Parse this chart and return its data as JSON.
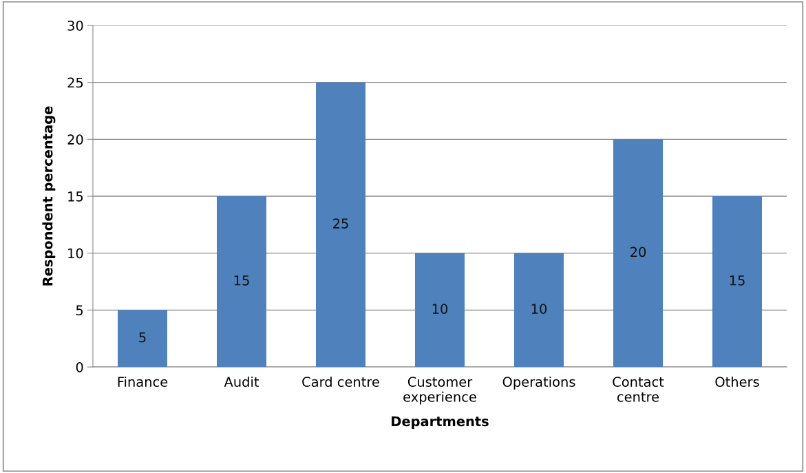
{
  "chart_data": {
    "type": "bar",
    "xlabel": "Departments",
    "ylabel": "Respondent percentage",
    "categories": [
      "Finance",
      "Audit",
      "Card centre",
      "Customer\nexperience",
      "Operations",
      "Contact\ncentre",
      "Others"
    ],
    "values": [
      5,
      15,
      25,
      10,
      10,
      20,
      15
    ],
    "color": "#4f81bd",
    "ylim": [
      0,
      30
    ],
    "yticks": [
      0,
      5,
      10,
      15,
      20,
      25,
      30
    ],
    "grid": "y",
    "data_labels": true
  }
}
